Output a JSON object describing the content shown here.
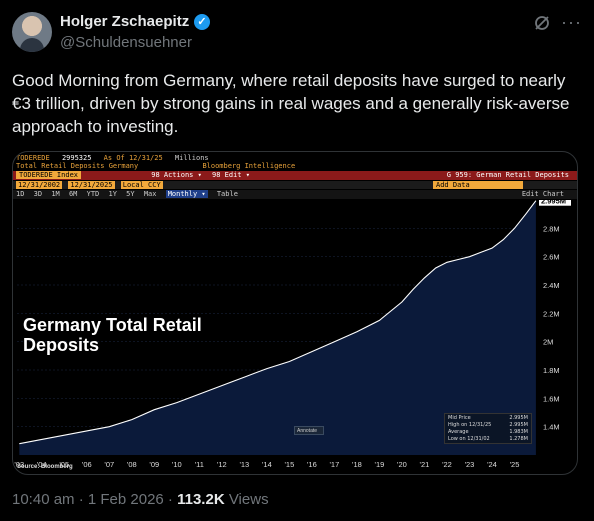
{
  "author": {
    "name": "Holger Zschaepitz",
    "handle": "@Schuldensuehner",
    "verified_mark": "✓"
  },
  "header_icons": [
    "grok-icon",
    "more-icon"
  ],
  "more_glyph": "···",
  "post": {
    "text": "Good Morning from Germany, where retail deposits have surged to nearly €3 trillion, driven by strong gains in real wages and a generally risk-averse approach to investing."
  },
  "terminal": {
    "ticker": "TODEREDE",
    "value": "2995325",
    "as_of": "As Of 12/31/25",
    "units": "Millions",
    "series_title": "Total Retail Deposits Germany",
    "source_name": "Bloomberg Intelligence",
    "index_label": "TODEREDE Index",
    "actions": "98 Actions ▾",
    "edit": "98 Edit ▾",
    "chart_id": "G 959: German Retail Deposits",
    "date_start": "12/31/2002",
    "date_end": "12/31/2025",
    "currency": "Local CCY",
    "add_data": "Add Data",
    "periods": [
      "1D",
      "3D",
      "1M",
      "6M",
      "YTD",
      "1Y",
      "5Y",
      "Max"
    ],
    "frequency": "Monthly ▾",
    "table": "Table",
    "edit_chart": "Edit Chart"
  },
  "chart_data": {
    "type": "area",
    "title": "Germany Total Retail Deposits",
    "title_line1": "Germany Total Retail",
    "title_line2": "Deposits",
    "x_tick_labels": [
      "'03",
      "'04",
      "'05",
      "'06",
      "'07",
      "'08",
      "'09",
      "'10",
      "'11",
      "'12",
      "'13",
      "'14",
      "'15",
      "'16",
      "'17",
      "'18",
      "'19",
      "'20",
      "'21",
      "'22",
      "'23",
      "'24",
      "'25"
    ],
    "y_tick_labels": [
      "1.4M",
      "1.6M",
      "1.8M",
      "2M",
      "2.2M",
      "2.4M",
      "2.6M",
      "2.8M"
    ],
    "y_ticks": [
      1.4,
      1.6,
      1.8,
      2.0,
      2.2,
      2.4,
      2.6,
      2.8
    ],
    "ylim": [
      1.2,
      3.0
    ],
    "xlim": [
      2002.9,
      2026.0
    ],
    "last_value_label": "2.995M",
    "series": [
      {
        "x": [
          2003.0,
          2004.0,
          2005.0,
          2006.0,
          2007.0,
          2008.0,
          2009.0,
          2010.0,
          2011.0,
          2012.0,
          2013.0,
          2014.0,
          2015.0,
          2016.0,
          2017.0,
          2018.0,
          2019.0,
          2020.0,
          2020.5,
          2021.0,
          2021.5,
          2022.0,
          2022.5,
          2023.0,
          2023.5,
          2024.0,
          2024.5,
          2025.0,
          2025.5,
          2025.95
        ],
        "y": [
          1.28,
          1.31,
          1.34,
          1.37,
          1.4,
          1.45,
          1.52,
          1.57,
          1.63,
          1.69,
          1.75,
          1.81,
          1.86,
          1.93,
          2.0,
          2.07,
          2.15,
          2.28,
          2.37,
          2.45,
          2.52,
          2.56,
          2.58,
          2.6,
          2.63,
          2.66,
          2.72,
          2.8,
          2.9,
          2.995
        ]
      }
    ],
    "legend": [
      {
        "label": "Mid Price",
        "value": "2.995M"
      },
      {
        "label": "High on 12/31/25",
        "value": "2.995M"
      },
      {
        "label": "Average",
        "value": "1.983M"
      },
      {
        "label": "Low on 12/31/02",
        "value": "1.278M"
      }
    ],
    "annotation": "Annotate",
    "source": "Source: Bloomberg",
    "colors": {
      "fill": "#0b1a3a",
      "line": "#ffffff",
      "background": "#000000"
    }
  },
  "meta": {
    "time": "10:40 am · 1 Feb 2026 · ",
    "views_count": "113.2K",
    "views_label": " Views"
  }
}
